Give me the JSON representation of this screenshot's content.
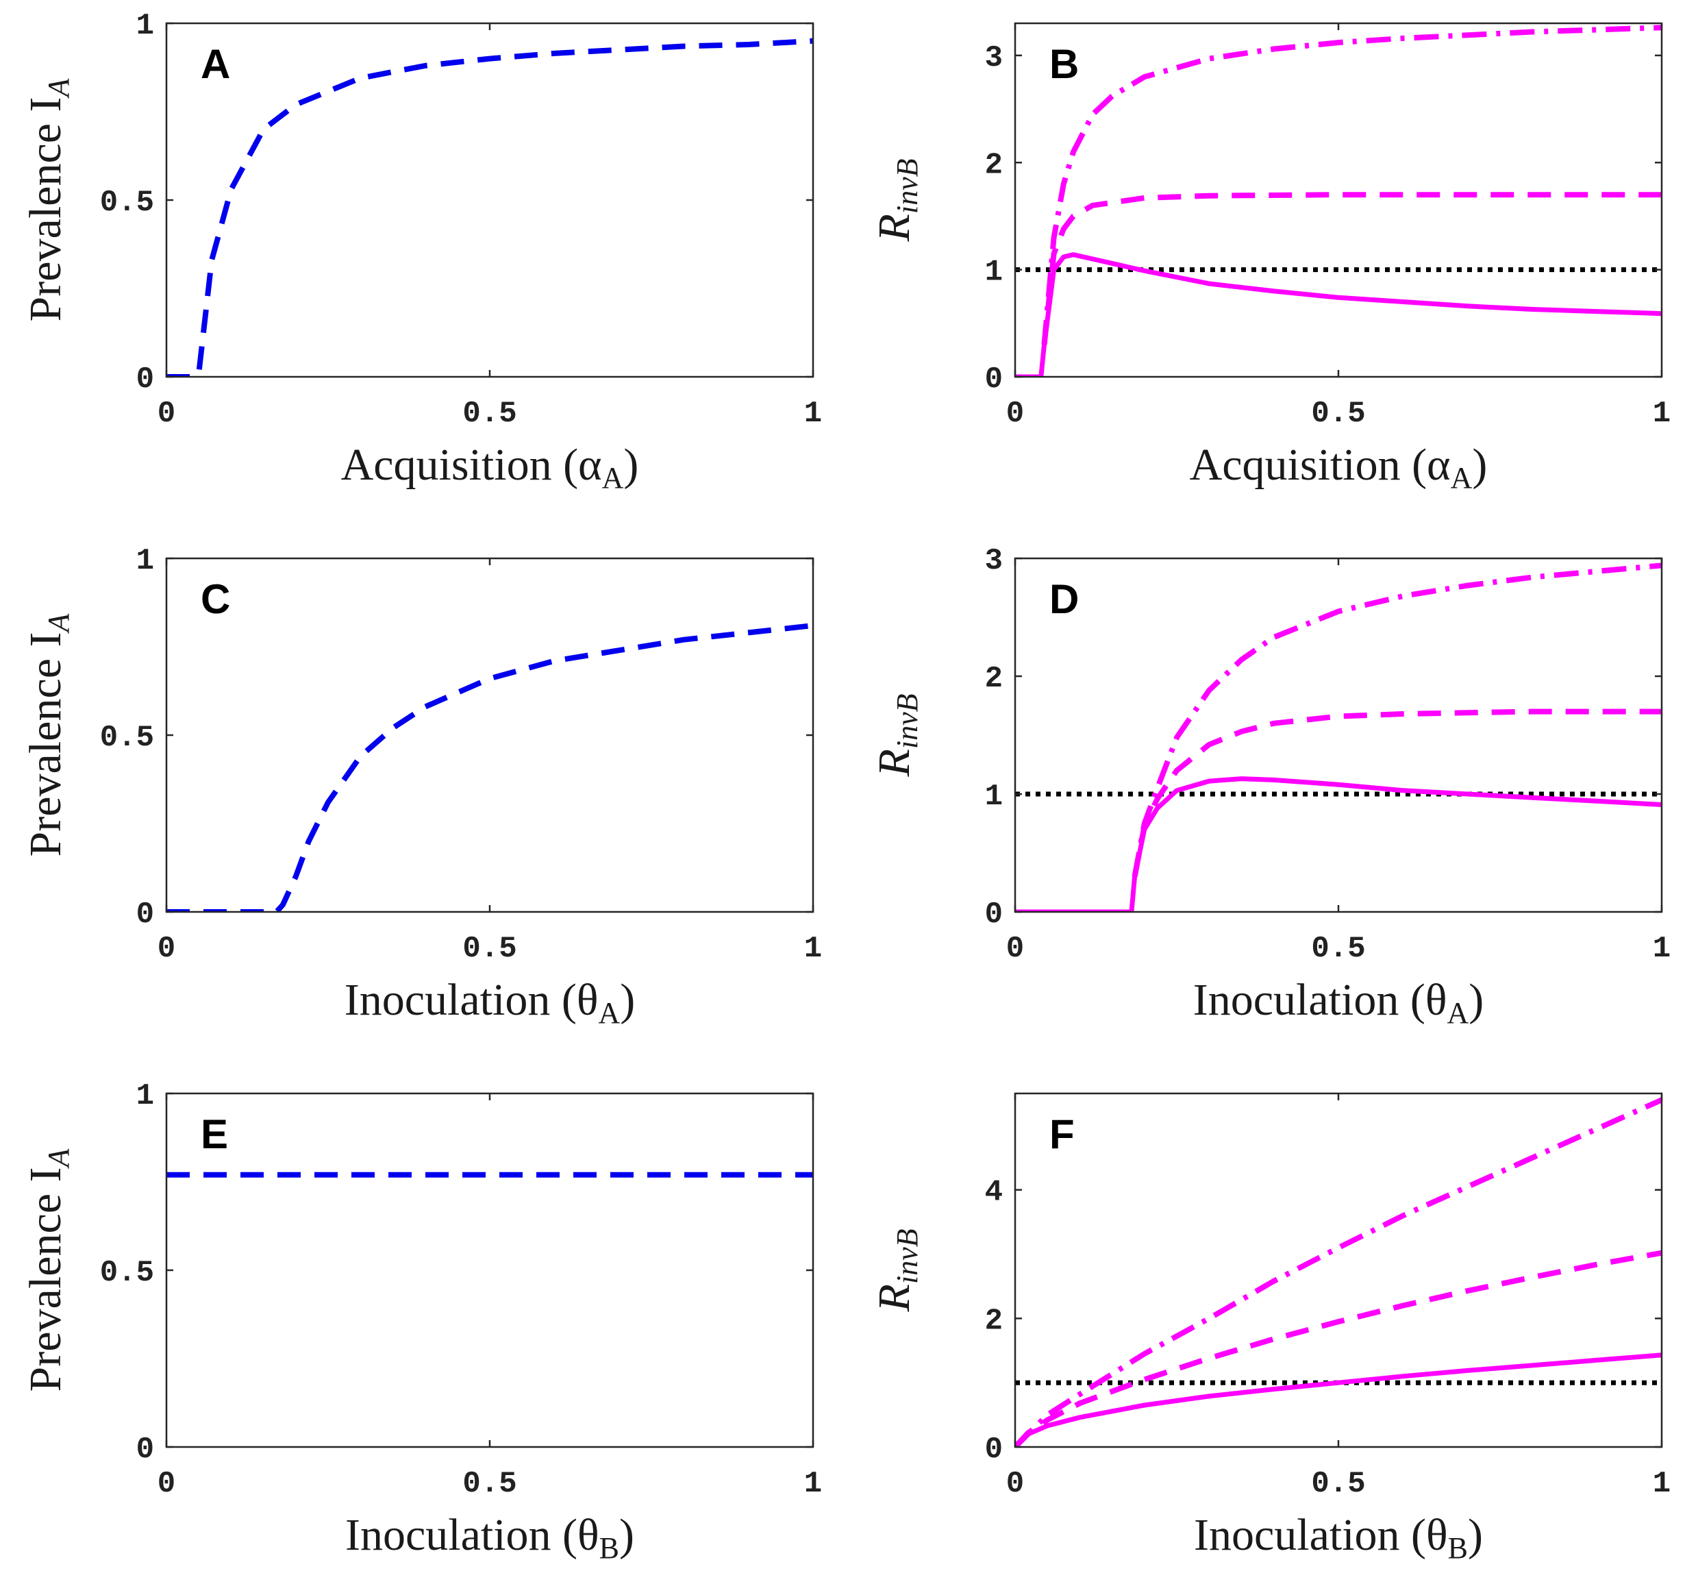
{
  "figure": {
    "colors": {
      "prevalence": "#0000ee",
      "rinv": "#ff00ff",
      "threshold": "#000000"
    }
  },
  "chart_data": [
    {
      "panel": "A",
      "type": "line",
      "ylabel": "Prevalence I",
      "ylabel_sub": "A",
      "xlabel": "Acquisition (α",
      "xlabel_sub": "A",
      "xlabel_close": ")",
      "xlim": [
        0,
        1
      ],
      "ylim": [
        0,
        1
      ],
      "xticks": [
        0,
        0.5,
        1
      ],
      "xtick_labels": [
        "0",
        "0.5",
        "1"
      ],
      "yticks": [
        0,
        0.5,
        1
      ],
      "ytick_labels": [
        "0",
        "0.5",
        "1"
      ],
      "series": [
        {
          "name": "prevalence",
          "style": "dashed",
          "color": "#0000ee",
          "x": [
            0,
            0.04,
            0.05,
            0.07,
            0.1,
            0.15,
            0.2,
            0.3,
            0.4,
            0.5,
            0.6,
            0.7,
            0.8,
            0.9,
            1.0
          ],
          "y": [
            0,
            0,
            0.01,
            0.33,
            0.53,
            0.7,
            0.77,
            0.845,
            0.88,
            0.9,
            0.915,
            0.925,
            0.935,
            0.94,
            0.95
          ]
        }
      ]
    },
    {
      "panel": "B",
      "type": "line",
      "ylabel": "R",
      "ylabel_sub": "invB",
      "xlabel": "Acquisition (α",
      "xlabel_sub": "A",
      "xlabel_close": ")",
      "xlim": [
        0,
        1
      ],
      "ylim": [
        0,
        3.3
      ],
      "xticks": [
        0,
        0.5,
        1
      ],
      "xtick_labels": [
        "0",
        "0.5",
        "1"
      ],
      "yticks": [
        0,
        1,
        2,
        3
      ],
      "ytick_labels": [
        "0",
        "1",
        "2",
        "3"
      ],
      "series": [
        {
          "name": "threshold",
          "style": "dotted",
          "color": "#000000",
          "x": [
            0,
            1
          ],
          "y": [
            1,
            1
          ]
        },
        {
          "name": "solid",
          "style": "solid",
          "color": "#ff00ff",
          "x": [
            0,
            0.04,
            0.045,
            0.06,
            0.075,
            0.09,
            0.12,
            0.2,
            0.3,
            0.4,
            0.5,
            0.6,
            0.7,
            0.8,
            0.9,
            1.0
          ],
          "y": [
            0,
            0,
            0.3,
            1.0,
            1.12,
            1.14,
            1.1,
            0.99,
            0.87,
            0.8,
            0.74,
            0.7,
            0.66,
            0.63,
            0.61,
            0.59
          ]
        },
        {
          "name": "dashed",
          "style": "dashed",
          "color": "#ff00ff",
          "x": [
            0.045,
            0.06,
            0.075,
            0.09,
            0.12,
            0.2,
            0.3,
            0.5,
            0.7,
            1.0
          ],
          "y": [
            0.3,
            1.15,
            1.38,
            1.5,
            1.6,
            1.67,
            1.69,
            1.7,
            1.7,
            1.7
          ]
        },
        {
          "name": "dashdot",
          "style": "dashdot",
          "color": "#ff00ff",
          "x": [
            0.045,
            0.06,
            0.075,
            0.09,
            0.12,
            0.15,
            0.2,
            0.3,
            0.4,
            0.5,
            0.6,
            0.7,
            0.8,
            0.9,
            1.0
          ],
          "y": [
            0.3,
            1.3,
            1.8,
            2.1,
            2.45,
            2.62,
            2.8,
            2.97,
            3.06,
            3.12,
            3.16,
            3.19,
            3.22,
            3.24,
            3.26
          ]
        }
      ]
    },
    {
      "panel": "C",
      "type": "line",
      "ylabel": "Prevalence I",
      "ylabel_sub": "A",
      "xlabel": "Inoculation (θ",
      "xlabel_sub": "A",
      "xlabel_close": ")",
      "xlim": [
        0,
        1
      ],
      "ylim": [
        0,
        1
      ],
      "xticks": [
        0,
        0.5,
        1
      ],
      "xtick_labels": [
        "0",
        "0.5",
        "1"
      ],
      "yticks": [
        0,
        0.5,
        1
      ],
      "ytick_labels": [
        "0",
        "0.5",
        "1"
      ],
      "series": [
        {
          "name": "prevalence",
          "style": "dashed",
          "color": "#0000ee",
          "x": [
            0,
            0.17,
            0.18,
            0.2,
            0.22,
            0.25,
            0.3,
            0.35,
            0.4,
            0.5,
            0.6,
            0.7,
            0.8,
            0.9,
            1.0
          ],
          "y": [
            0,
            0,
            0.02,
            0.1,
            0.2,
            0.31,
            0.44,
            0.52,
            0.58,
            0.66,
            0.71,
            0.74,
            0.77,
            0.79,
            0.81
          ]
        }
      ]
    },
    {
      "panel": "D",
      "type": "line",
      "ylabel": "R",
      "ylabel_sub": "invB",
      "xlabel": "Inoculation (θ",
      "xlabel_sub": "A",
      "xlabel_close": ")",
      "xlim": [
        0,
        1
      ],
      "ylim": [
        0,
        3
      ],
      "xticks": [
        0,
        0.5,
        1
      ],
      "xtick_labels": [
        "0",
        "0.5",
        "1"
      ],
      "yticks": [
        0,
        1,
        2,
        3
      ],
      "ytick_labels": [
        "0",
        "1",
        "2",
        "3"
      ],
      "series": [
        {
          "name": "threshold",
          "style": "dotted",
          "color": "#000000",
          "x": [
            0,
            1
          ],
          "y": [
            1,
            1
          ]
        },
        {
          "name": "solid",
          "style": "solid",
          "color": "#ff00ff",
          "x": [
            0,
            0.18,
            0.185,
            0.2,
            0.22,
            0.25,
            0.3,
            0.35,
            0.4,
            0.5,
            0.6,
            0.7,
            0.8,
            0.9,
            1.0
          ],
          "y": [
            0,
            0,
            0.3,
            0.7,
            0.88,
            1.03,
            1.11,
            1.13,
            1.12,
            1.08,
            1.03,
            1.0,
            0.97,
            0.94,
            0.91
          ]
        },
        {
          "name": "dashed",
          "style": "dashed",
          "color": "#ff00ff",
          "x": [
            0.185,
            0.2,
            0.22,
            0.25,
            0.3,
            0.35,
            0.4,
            0.5,
            0.6,
            0.7,
            0.8,
            0.9,
            1.0
          ],
          "y": [
            0.3,
            0.73,
            0.96,
            1.2,
            1.42,
            1.53,
            1.6,
            1.66,
            1.68,
            1.69,
            1.7,
            1.7,
            1.7
          ]
        },
        {
          "name": "dashdot",
          "style": "dashdot",
          "color": "#ff00ff",
          "x": [
            0.185,
            0.2,
            0.22,
            0.25,
            0.3,
            0.35,
            0.4,
            0.5,
            0.6,
            0.7,
            0.8,
            0.9,
            1.0
          ],
          "y": [
            0.3,
            0.75,
            1.05,
            1.48,
            1.88,
            2.14,
            2.33,
            2.55,
            2.68,
            2.77,
            2.84,
            2.89,
            2.94
          ]
        }
      ]
    },
    {
      "panel": "E",
      "type": "line",
      "ylabel": "Prevalence I",
      "ylabel_sub": "A",
      "xlabel": "Inoculation (θ",
      "xlabel_sub": "B",
      "xlabel_close": ")",
      "xlim": [
        0,
        1
      ],
      "ylim": [
        0,
        1
      ],
      "xticks": [
        0,
        0.5,
        1
      ],
      "xtick_labels": [
        "0",
        "0.5",
        "1"
      ],
      "yticks": [
        0,
        0.5,
        1
      ],
      "ytick_labels": [
        "0",
        "0.5",
        "1"
      ],
      "series": [
        {
          "name": "prevalence",
          "style": "dashed",
          "color": "#0000ee",
          "x": [
            0,
            1
          ],
          "y": [
            0.77,
            0.77
          ]
        }
      ]
    },
    {
      "panel": "F",
      "type": "line",
      "ylabel": "R",
      "ylabel_sub": "invB",
      "xlabel": "Inoculation (θ",
      "xlabel_sub": "B",
      "xlabel_close": ")",
      "xlim": [
        0,
        1
      ],
      "ylim": [
        0,
        5.5
      ],
      "xticks": [
        0,
        0.5,
        1
      ],
      "xtick_labels": [
        "0",
        "0.5",
        "1"
      ],
      "yticks": [
        0,
        2,
        4
      ],
      "ytick_labels": [
        "0",
        "2",
        "4"
      ],
      "series": [
        {
          "name": "threshold",
          "style": "dotted",
          "color": "#000000",
          "x": [
            0,
            1
          ],
          "y": [
            1,
            1
          ]
        },
        {
          "name": "solid",
          "style": "solid",
          "color": "#ff00ff",
          "x": [
            0,
            0.02,
            0.05,
            0.1,
            0.2,
            0.3,
            0.4,
            0.5,
            0.6,
            0.7,
            0.8,
            0.9,
            1.0
          ],
          "y": [
            0,
            0.2,
            0.33,
            0.46,
            0.65,
            0.79,
            0.9,
            1.0,
            1.1,
            1.19,
            1.27,
            1.35,
            1.43
          ]
        },
        {
          "name": "dashed",
          "style": "dashed",
          "color": "#ff00ff",
          "x": [
            0,
            0.02,
            0.05,
            0.1,
            0.2,
            0.3,
            0.4,
            0.5,
            0.6,
            0.7,
            0.8,
            0.9,
            1.0
          ],
          "y": [
            0,
            0.22,
            0.42,
            0.68,
            1.05,
            1.38,
            1.68,
            1.95,
            2.2,
            2.43,
            2.64,
            2.84,
            3.02
          ]
        },
        {
          "name": "dashdot",
          "style": "dashdot",
          "color": "#ff00ff",
          "x": [
            0,
            0.02,
            0.05,
            0.1,
            0.2,
            0.3,
            0.4,
            0.5,
            0.6,
            0.7,
            0.8,
            0.9,
            1.0
          ],
          "y": [
            0,
            0.2,
            0.5,
            0.82,
            1.45,
            2.0,
            2.58,
            3.1,
            3.6,
            4.05,
            4.5,
            4.95,
            5.4
          ]
        }
      ]
    }
  ]
}
